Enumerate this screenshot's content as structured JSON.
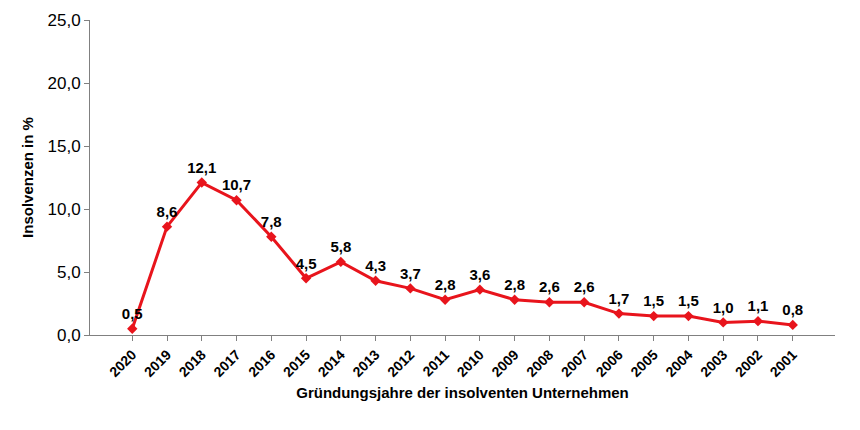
{
  "chart_data": {
    "type": "line",
    "x_label": "Gründungsjahre der insolventen Unternehmen",
    "y_label": "Insolvenzen in %",
    "categories": [
      "2020",
      "2019",
      "2018",
      "2017",
      "2016",
      "2015",
      "2014",
      "2013",
      "2012",
      "2011",
      "2010",
      "2009",
      "2008",
      "2007",
      "2006",
      "2005",
      "2004",
      "2003",
      "2002",
      "2001"
    ],
    "values": [
      0.5,
      8.6,
      12.1,
      10.7,
      7.8,
      4.5,
      5.8,
      4.3,
      3.7,
      2.8,
      3.6,
      2.8,
      2.6,
      2.6,
      1.7,
      1.5,
      1.5,
      1.0,
      1.1,
      0.8
    ],
    "value_labels": [
      "0,5",
      "8,6",
      "12,1",
      "10,7",
      "7,8",
      "4,5",
      "5,8",
      "4,3",
      "3,7",
      "2,8",
      "3,6",
      "2,8",
      "2,6",
      "2,6",
      "1,7",
      "1,5",
      "1,5",
      "1,0",
      "1,1",
      "0,8"
    ],
    "color": "#e8141c",
    "marker": "diamond",
    "ylim": [
      0,
      25
    ],
    "yticks": [
      {
        "value": 0,
        "label": "0,0"
      },
      {
        "value": 5,
        "label": "5,0"
      },
      {
        "value": 10,
        "label": "10,0"
      },
      {
        "value": 15,
        "label": "15,0"
      },
      {
        "value": 20,
        "label": "20,0"
      },
      {
        "value": 25,
        "label": "25,0"
      }
    ],
    "grid": false,
    "data_labels": true
  }
}
